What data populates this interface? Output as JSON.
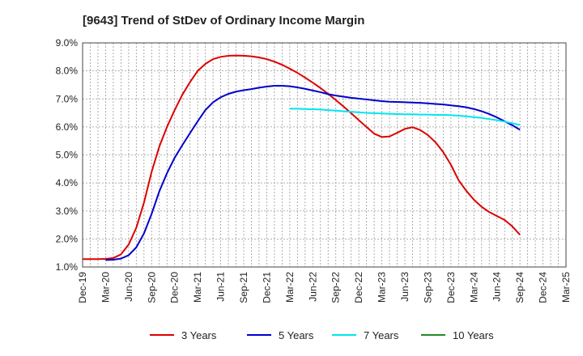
{
  "chart_data": {
    "type": "line",
    "title": "[9643]  Trend of StDev of Ordinary Income Margin",
    "xlabel": "",
    "ylabel": "",
    "x_tick_labels": [
      "Dec-19",
      "Mar-20",
      "Jun-20",
      "Sep-20",
      "Dec-20",
      "Mar-21",
      "Jun-21",
      "Sep-21",
      "Dec-21",
      "Mar-22",
      "Jun-22",
      "Sep-22",
      "Dec-22",
      "Mar-23",
      "Jun-23",
      "Sep-23",
      "Dec-23",
      "Mar-24",
      "Jun-24",
      "Sep-24",
      "Dec-24",
      "Mar-25"
    ],
    "y_ticks": [
      1.0,
      2.0,
      3.0,
      4.0,
      5.0,
      6.0,
      7.0,
      8.0,
      9.0
    ],
    "y_tick_labels": [
      "1.0%",
      "2.0%",
      "3.0%",
      "4.0%",
      "5.0%",
      "6.0%",
      "7.0%",
      "8.0%",
      "9.0%"
    ],
    "ylim": [
      1.0,
      9.0
    ],
    "grid": true,
    "legend_position": "bottom",
    "series": [
      {
        "name": "3 Years",
        "color": "#dd0000",
        "points": [
          [
            "Dec-19",
            1.28
          ],
          [
            "Jan-20",
            1.28
          ],
          [
            "Feb-20",
            1.28
          ],
          [
            "Mar-20",
            1.29
          ],
          [
            "Apr-20",
            1.32
          ],
          [
            "May-20",
            1.45
          ],
          [
            "Jun-20",
            1.8
          ],
          [
            "Jul-20",
            2.4
          ],
          [
            "Aug-20",
            3.3
          ],
          [
            "Sep-20",
            4.4
          ],
          [
            "Oct-20",
            5.3
          ],
          [
            "Nov-20",
            6.0
          ],
          [
            "Dec-20",
            6.6
          ],
          [
            "Jan-21",
            7.15
          ],
          [
            "Feb-21",
            7.6
          ],
          [
            "Mar-21",
            8.0
          ],
          [
            "Apr-21",
            8.25
          ],
          [
            "May-21",
            8.42
          ],
          [
            "Jun-21",
            8.5
          ],
          [
            "Jul-21",
            8.54
          ],
          [
            "Aug-21",
            8.55
          ],
          [
            "Sep-21",
            8.54
          ],
          [
            "Oct-21",
            8.52
          ],
          [
            "Nov-21",
            8.48
          ],
          [
            "Dec-21",
            8.42
          ],
          [
            "Jan-22",
            8.33
          ],
          [
            "Feb-22",
            8.22
          ],
          [
            "Mar-22",
            8.08
          ],
          [
            "Apr-22",
            7.93
          ],
          [
            "May-22",
            7.76
          ],
          [
            "Jun-22",
            7.58
          ],
          [
            "Jul-22",
            7.39
          ],
          [
            "Aug-22",
            7.18
          ],
          [
            "Sep-22",
            6.96
          ],
          [
            "Oct-22",
            6.73
          ],
          [
            "Nov-22",
            6.49
          ],
          [
            "Dec-22",
            6.24
          ],
          [
            "Jan-23",
            6.0
          ],
          [
            "Feb-23",
            5.76
          ],
          [
            "Mar-23",
            5.64
          ],
          [
            "Apr-23",
            5.66
          ],
          [
            "May-23",
            5.79
          ],
          [
            "Jun-23",
            5.93
          ],
          [
            "Jul-23",
            5.99
          ],
          [
            "Aug-23",
            5.89
          ],
          [
            "Sep-23",
            5.71
          ],
          [
            "Oct-23",
            5.45
          ],
          [
            "Nov-23",
            5.1
          ],
          [
            "Dec-23",
            4.65
          ],
          [
            "Jan-24",
            4.1
          ],
          [
            "Feb-24",
            3.72
          ],
          [
            "Mar-24",
            3.4
          ],
          [
            "Apr-24",
            3.15
          ],
          [
            "May-24",
            2.96
          ],
          [
            "Jun-24",
            2.82
          ],
          [
            "Jul-24",
            2.68
          ],
          [
            "Aug-24",
            2.45
          ],
          [
            "Sep-24",
            2.15
          ]
        ]
      },
      {
        "name": "5 Years",
        "color": "#0000cc",
        "points": [
          [
            "Mar-20",
            1.25
          ],
          [
            "Apr-20",
            1.26
          ],
          [
            "May-20",
            1.3
          ],
          [
            "Jun-20",
            1.42
          ],
          [
            "Jul-20",
            1.7
          ],
          [
            "Aug-20",
            2.2
          ],
          [
            "Sep-20",
            2.9
          ],
          [
            "Oct-20",
            3.7
          ],
          [
            "Nov-20",
            4.35
          ],
          [
            "Dec-20",
            4.9
          ],
          [
            "Jan-21",
            5.35
          ],
          [
            "Feb-21",
            5.78
          ],
          [
            "Mar-21",
            6.2
          ],
          [
            "Apr-21",
            6.6
          ],
          [
            "May-21",
            6.88
          ],
          [
            "Jun-21",
            7.06
          ],
          [
            "Jul-21",
            7.18
          ],
          [
            "Aug-21",
            7.26
          ],
          [
            "Sep-21",
            7.31
          ],
          [
            "Oct-21",
            7.35
          ],
          [
            "Nov-21",
            7.4
          ],
          [
            "Dec-21",
            7.44
          ],
          [
            "Jan-22",
            7.47
          ],
          [
            "Feb-22",
            7.47
          ],
          [
            "Mar-22",
            7.45
          ],
          [
            "Apr-22",
            7.41
          ],
          [
            "May-22",
            7.36
          ],
          [
            "Jun-22",
            7.3
          ],
          [
            "Jul-22",
            7.24
          ],
          [
            "Aug-22",
            7.17
          ],
          [
            "Sep-22",
            7.12
          ],
          [
            "Oct-22",
            7.08
          ],
          [
            "Nov-22",
            7.04
          ],
          [
            "Dec-22",
            7.01
          ],
          [
            "Jan-23",
            6.98
          ],
          [
            "Feb-23",
            6.95
          ],
          [
            "Mar-23",
            6.92
          ],
          [
            "Apr-23",
            6.9
          ],
          [
            "May-23",
            6.89
          ],
          [
            "Jun-23",
            6.88
          ],
          [
            "Jul-23",
            6.87
          ],
          [
            "Aug-23",
            6.86
          ],
          [
            "Sep-23",
            6.84
          ],
          [
            "Oct-23",
            6.82
          ],
          [
            "Nov-23",
            6.8
          ],
          [
            "Dec-23",
            6.77
          ],
          [
            "Jan-24",
            6.74
          ],
          [
            "Feb-24",
            6.7
          ],
          [
            "Mar-24",
            6.64
          ],
          [
            "Apr-24",
            6.56
          ],
          [
            "May-24",
            6.46
          ],
          [
            "Jun-24",
            6.34
          ],
          [
            "Jul-24",
            6.2
          ],
          [
            "Aug-24",
            6.06
          ],
          [
            "Sep-24",
            5.9
          ]
        ]
      },
      {
        "name": "7 Years",
        "color": "#00e5ee",
        "points": [
          [
            "Mar-22",
            6.65
          ],
          [
            "Apr-22",
            6.65
          ],
          [
            "May-22",
            6.64
          ],
          [
            "Jun-22",
            6.63
          ],
          [
            "Jul-22",
            6.62
          ],
          [
            "Aug-22",
            6.6
          ],
          [
            "Sep-22",
            6.58
          ],
          [
            "Oct-22",
            6.56
          ],
          [
            "Nov-22",
            6.54
          ],
          [
            "Dec-22",
            6.52
          ],
          [
            "Jan-23",
            6.5
          ],
          [
            "Feb-23",
            6.49
          ],
          [
            "Mar-23",
            6.48
          ],
          [
            "Apr-23",
            6.47
          ],
          [
            "May-23",
            6.46
          ],
          [
            "Jun-23",
            6.45
          ],
          [
            "Jul-23",
            6.45
          ],
          [
            "Aug-23",
            6.44
          ],
          [
            "Sep-23",
            6.44
          ],
          [
            "Oct-23",
            6.43
          ],
          [
            "Nov-23",
            6.43
          ],
          [
            "Dec-23",
            6.42
          ],
          [
            "Jan-24",
            6.4
          ],
          [
            "Feb-24",
            6.38
          ],
          [
            "Mar-24",
            6.35
          ],
          [
            "Apr-24",
            6.32
          ],
          [
            "May-24",
            6.28
          ],
          [
            "Jun-24",
            6.24
          ],
          [
            "Jul-24",
            6.19
          ],
          [
            "Aug-24",
            6.13
          ],
          [
            "Sep-24",
            6.07
          ]
        ]
      },
      {
        "name": "10 Years",
        "color": "#228b22",
        "points": []
      }
    ]
  }
}
